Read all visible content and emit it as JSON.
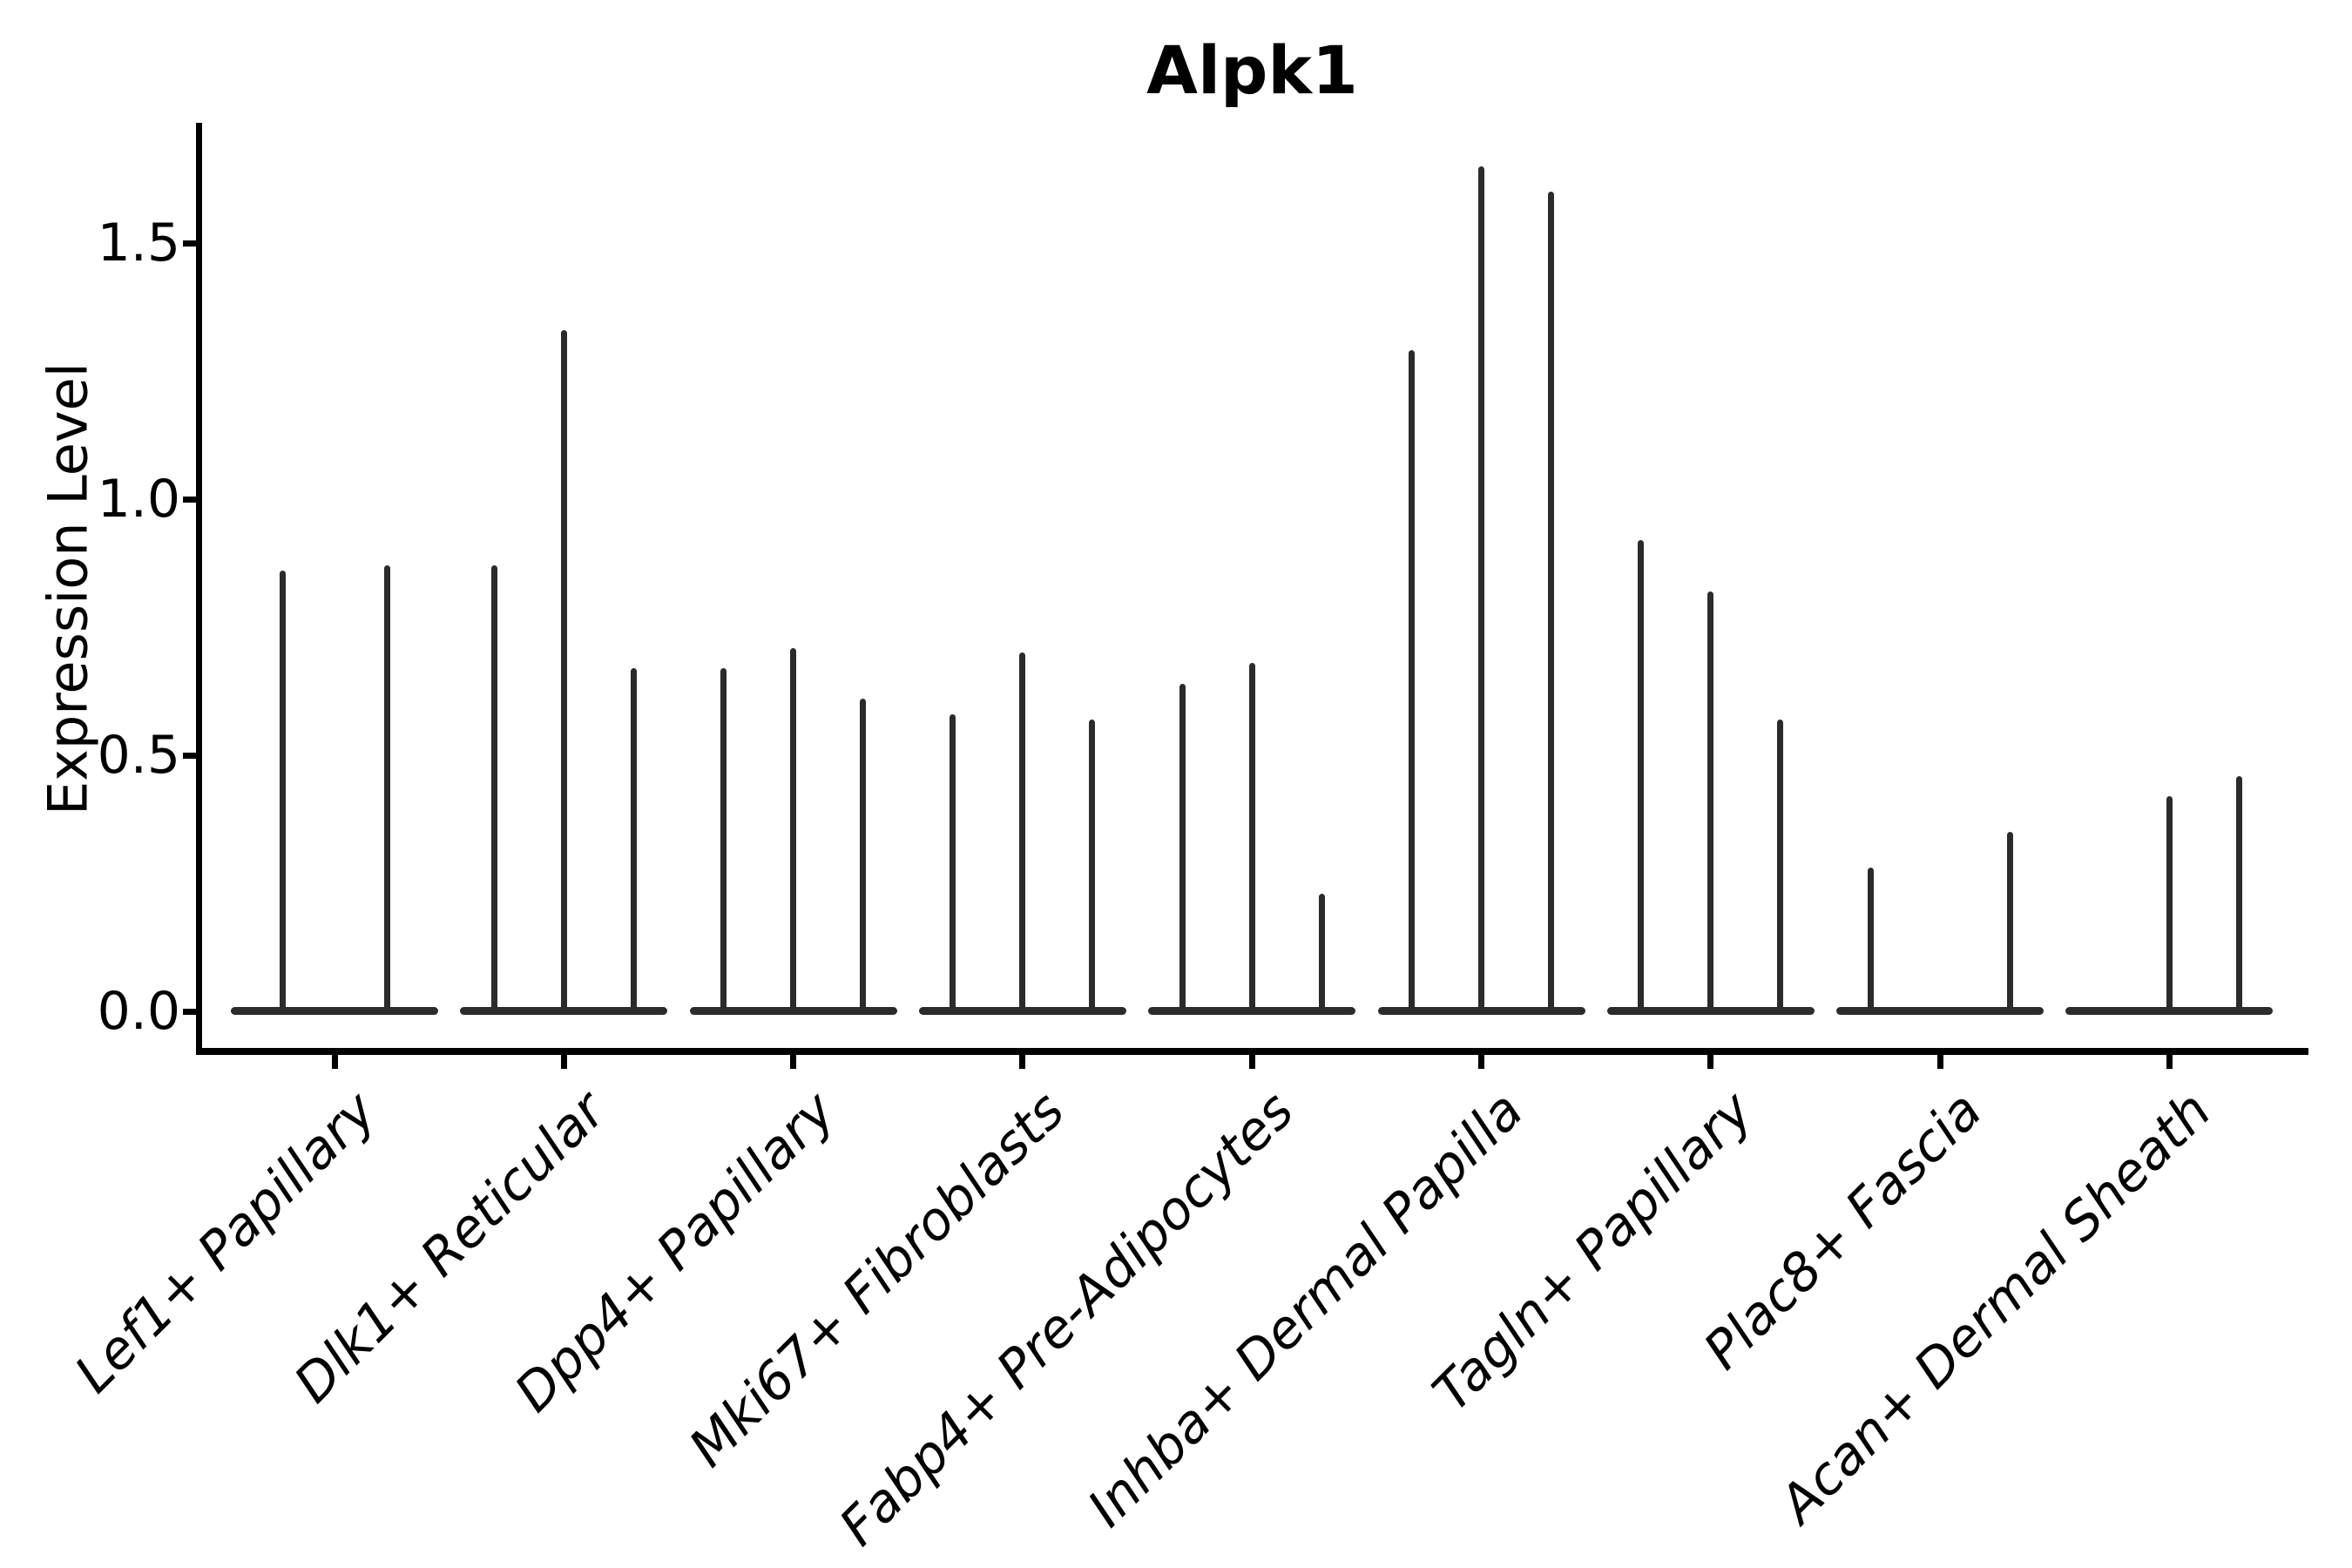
{
  "chart_data": {
    "type": "violin",
    "title": "Alpk1",
    "ylabel": "Expression Level",
    "xlabel": "",
    "ytick_labels": [
      "0.0",
      "0.5",
      "1.0",
      "1.5"
    ],
    "ytick_values": [
      0.0,
      0.5,
      1.0,
      1.5
    ],
    "ylim": [
      -0.09,
      1.73
    ],
    "grid": false,
    "legend": "none",
    "categories": [
      "Lef1+ Papillary",
      "Dlk1+ Reticular",
      "Dpp4+ Papillary",
      "Mki67+ Fibroblasts",
      "Fabp4+ Pre-Adipocytes",
      "Inhba+ Dermal Papilla",
      "Tagln+ Papillary",
      "Plac8+ Fascia",
      "Acan+ Dermal Sheath"
    ],
    "groups": [
      {
        "label": "Lef1+ Papillary",
        "slots": 2,
        "violins": [
          {
            "slot": 0,
            "max": 0.86
          },
          {
            "slot": 1,
            "max": 0.87
          }
        ]
      },
      {
        "label": "Dlk1+ Reticular",
        "slots": 3,
        "violins": [
          {
            "slot": 0,
            "max": 0.87
          },
          {
            "slot": 1,
            "max": 1.33
          },
          {
            "slot": 2,
            "max": 0.67
          }
        ]
      },
      {
        "label": "Dpp4+ Papillary",
        "slots": 3,
        "violins": [
          {
            "slot": 0,
            "max": 0.67
          },
          {
            "slot": 1,
            "max": 0.71
          },
          {
            "slot": 2,
            "max": 0.61
          }
        ]
      },
      {
        "label": "Mki67+ Fibroblasts",
        "slots": 3,
        "violins": [
          {
            "slot": 0,
            "max": 0.58
          },
          {
            "slot": 1,
            "max": 0.7
          },
          {
            "slot": 2,
            "max": 0.57
          }
        ]
      },
      {
        "label": "Fabp4+ Pre-Adipocytes",
        "slots": 3,
        "violins": [
          {
            "slot": 0,
            "max": 0.64
          },
          {
            "slot": 1,
            "max": 0.68
          },
          {
            "slot": 2,
            "max": 0.23
          }
        ]
      },
      {
        "label": "Inhba+ Dermal Papilla",
        "slots": 3,
        "violins": [
          {
            "slot": 0,
            "max": 1.29
          },
          {
            "slot": 1,
            "max": 1.65
          },
          {
            "slot": 2,
            "max": 1.6
          }
        ]
      },
      {
        "label": "Tagln+ Papillary",
        "slots": 3,
        "violins": [
          {
            "slot": 0,
            "max": 0.92
          },
          {
            "slot": 1,
            "max": 0.82
          },
          {
            "slot": 2,
            "max": 0.57
          }
        ]
      },
      {
        "label": "Plac8+ Fascia",
        "slots": 3,
        "violins": [
          {
            "slot": 0,
            "max": 0.28
          },
          {
            "slot": 2,
            "max": 0.35
          }
        ]
      },
      {
        "label": "Acan+ Dermal Sheath",
        "slots": 3,
        "violins": [
          {
            "slot": 1,
            "max": 0.42
          },
          {
            "slot": 2,
            "max": 0.46
          }
        ]
      }
    ],
    "colors": {
      "violin_stroke": "#2b2b2b",
      "axis": "#000000",
      "text": "#000000",
      "background": "#ffffff"
    },
    "style_notes": "violins collapsed to thin vertical spikes with wide flat bases at expression 0"
  }
}
